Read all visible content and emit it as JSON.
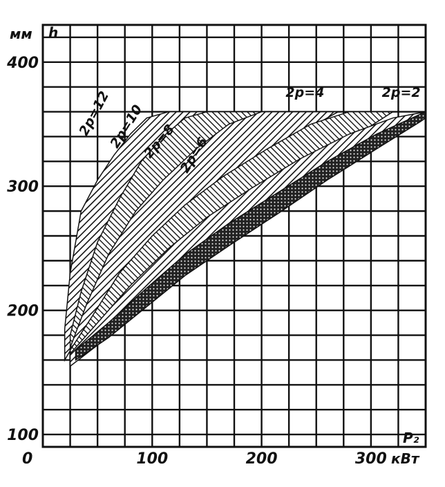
{
  "chart_data": {
    "type": "area",
    "ylabel": "h",
    "yunit": "мм",
    "xlabel": "P₂",
    "xunit": "кВт",
    "x_origin_label": "0",
    "xlim": [
      0,
      350
    ],
    "ylim": [
      90,
      430
    ],
    "xticks": [
      100,
      200,
      300
    ],
    "yticks": [
      100,
      200,
      300,
      400
    ],
    "grid": true,
    "series": [
      {
        "name": "2p=12",
        "lower": [
          [
            20,
            160
          ],
          [
            30,
            175
          ],
          [
            45,
            195
          ],
          [
            60,
            215
          ],
          [
            75,
            235
          ],
          [
            90,
            255
          ],
          [
            105,
            275
          ],
          [
            120,
            295
          ],
          [
            135,
            315
          ],
          [
            150,
            335
          ],
          [
            160,
            350
          ]
        ],
        "upper": [
          [
            20,
            185
          ],
          [
            25,
            230
          ],
          [
            35,
            280
          ],
          [
            50,
            305
          ],
          [
            65,
            325
          ],
          [
            80,
            342
          ],
          [
            95,
            355
          ],
          [
            115,
            360
          ],
          [
            135,
            360
          ],
          [
            160,
            360
          ]
        ]
      },
      {
        "name": "2p=10",
        "lower": [
          [
            25,
            160
          ],
          [
            40,
            180
          ],
          [
            60,
            205
          ],
          [
            80,
            230
          ],
          [
            100,
            252
          ],
          [
            125,
            275
          ],
          [
            150,
            300
          ],
          [
            175,
            325
          ],
          [
            200,
            348
          ],
          [
            215,
            360
          ]
        ],
        "upper": [
          [
            25,
            180
          ],
          [
            35,
            215
          ],
          [
            50,
            255
          ],
          [
            70,
            290
          ],
          [
            90,
            320
          ],
          [
            110,
            340
          ],
          [
            130,
            355
          ],
          [
            150,
            360
          ],
          [
            215,
            360
          ]
        ]
      },
      {
        "name": "2p=8",
        "lower": [
          [
            25,
            155
          ],
          [
            40,
            175
          ],
          [
            60,
            200
          ],
          [
            85,
            225
          ],
          [
            110,
            248
          ],
          [
            140,
            272
          ],
          [
            175,
            300
          ],
          [
            210,
            325
          ],
          [
            250,
            350
          ],
          [
            270,
            360
          ]
        ],
        "upper": [
          [
            25,
            170
          ],
          [
            40,
            205
          ],
          [
            60,
            245
          ],
          [
            85,
            280
          ],
          [
            110,
            305
          ],
          [
            140,
            330
          ],
          [
            170,
            350
          ],
          [
            200,
            360
          ],
          [
            270,
            360
          ]
        ]
      },
      {
        "name": "2p=6",
        "lower": [
          [
            25,
            155
          ],
          [
            45,
            170
          ],
          [
            70,
            195
          ],
          [
            100,
            220
          ],
          [
            130,
            243
          ],
          [
            165,
            267
          ],
          [
            205,
            292
          ],
          [
            245,
            318
          ],
          [
            290,
            343
          ],
          [
            320,
            360
          ]
        ],
        "upper": [
          [
            25,
            168
          ],
          [
            45,
            195
          ],
          [
            70,
            230
          ],
          [
            100,
            260
          ],
          [
            130,
            285
          ],
          [
            165,
            308
          ],
          [
            205,
            330
          ],
          [
            245,
            350
          ],
          [
            280,
            360
          ],
          [
            320,
            360
          ]
        ]
      },
      {
        "name": "2p=4",
        "lower": [
          [
            25,
            155
          ],
          [
            50,
            172
          ],
          [
            80,
            197
          ],
          [
            115,
            222
          ],
          [
            150,
            245
          ],
          [
            190,
            268
          ],
          [
            235,
            295
          ],
          [
            280,
            320
          ],
          [
            320,
            340
          ],
          [
            350,
            355
          ]
        ],
        "upper": [
          [
            25,
            165
          ],
          [
            50,
            190
          ],
          [
            80,
            220
          ],
          [
            115,
            250
          ],
          [
            150,
            275
          ],
          [
            190,
            298
          ],
          [
            235,
            322
          ],
          [
            280,
            342
          ],
          [
            320,
            355
          ],
          [
            350,
            360
          ]
        ]
      },
      {
        "name": "2p=2",
        "lower": [
          [
            30,
            160
          ],
          [
            60,
            178
          ],
          [
            95,
            203
          ],
          [
            130,
            228
          ],
          [
            170,
            252
          ],
          [
            215,
            278
          ],
          [
            260,
            305
          ],
          [
            305,
            330
          ],
          [
            345,
            352
          ],
          [
            350,
            355
          ]
        ],
        "upper": [
          [
            30,
            168
          ],
          [
            60,
            190
          ],
          [
            95,
            218
          ],
          [
            130,
            245
          ],
          [
            170,
            270
          ],
          [
            215,
            295
          ],
          [
            260,
            320
          ],
          [
            305,
            342
          ],
          [
            345,
            358
          ],
          [
            350,
            360
          ]
        ]
      }
    ]
  }
}
